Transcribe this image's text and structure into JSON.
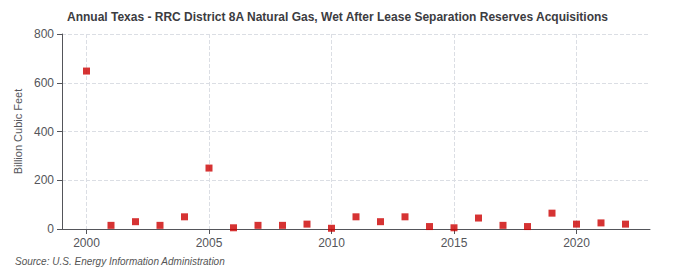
{
  "chart_data": {
    "type": "scatter",
    "title": "Annual Texas - RRC District 8A Natural Gas, Wet After Lease Separation Reserves Acquisitions",
    "ylabel": "Billion Cubic Feet",
    "source": "Source: U.S. Energy Information Administration",
    "x": [
      2000,
      2001,
      2002,
      2003,
      2004,
      2005,
      2006,
      2007,
      2008,
      2009,
      2010,
      2011,
      2012,
      2013,
      2014,
      2015,
      2016,
      2017,
      2018,
      2019,
      2020,
      2021,
      2022
    ],
    "values": [
      648,
      15,
      30,
      15,
      50,
      250,
      5,
      15,
      15,
      20,
      3,
      50,
      30,
      50,
      10,
      5,
      45,
      15,
      10,
      65,
      20,
      25,
      20
    ],
    "color": "#cc0000",
    "marker": "square",
    "xlim": [
      1999.0,
      2023.0
    ],
    "xticks": [
      2000,
      2005,
      2010,
      2015,
      2020
    ],
    "ylim": [
      0,
      800
    ],
    "yticks": [
      0,
      200,
      400,
      600,
      800
    ],
    "grid": true
  }
}
